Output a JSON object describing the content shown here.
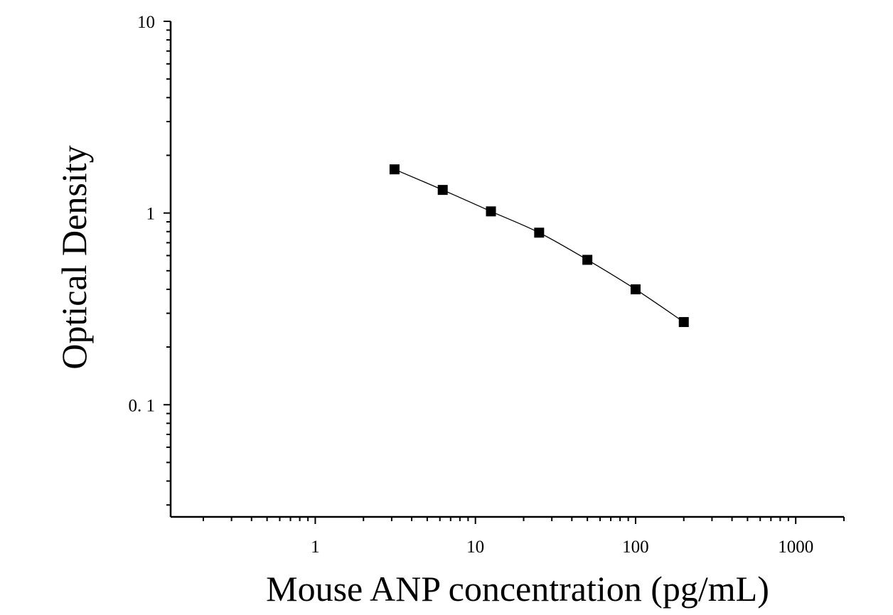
{
  "chart_data": {
    "type": "scatter",
    "title": "",
    "xlabel": "Mouse ANP concentration (pg/mL)",
    "ylabel": "Optical Density",
    "x_scale": "log",
    "y_scale": "log",
    "xlim": [
      0.125,
      2000
    ],
    "ylim": [
      0.026,
      10
    ],
    "x_ticks": [
      1,
      10,
      100,
      1000
    ],
    "x_tick_labels": [
      "1",
      "10",
      "100",
      "1000"
    ],
    "y_ticks": [
      0.1,
      1,
      10
    ],
    "y_tick_labels": [
      "0. 1",
      "1",
      "10"
    ],
    "grid": false,
    "legend": "none",
    "colors": {
      "marker": "#000000",
      "line": "#000000",
      "axis": "#000000"
    },
    "series": [
      {
        "marker": "square",
        "fit_line": true,
        "x": [
          3.125,
          6.25,
          12.5,
          25,
          50,
          100,
          200
        ],
        "y": [
          1.69,
          1.32,
          1.02,
          0.79,
          0.57,
          0.4,
          0.27
        ]
      }
    ]
  }
}
